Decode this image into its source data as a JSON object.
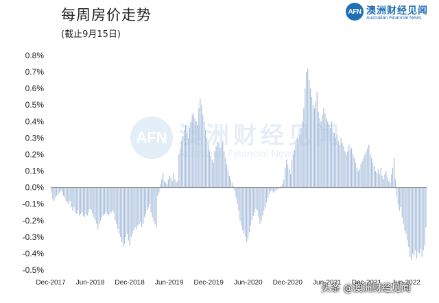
{
  "header": {
    "title": "每周房价走势",
    "subtitle": "(截止9月15日)"
  },
  "brand": {
    "logo_text": "AFN",
    "name_cn": "澳洲财经见闻",
    "name_en": "Australian Financial News",
    "color": "#1f6fb6"
  },
  "watermark": {
    "logo_text": "AFN",
    "name_cn": "澳洲财经见闻",
    "name_en": "Australian Financial News"
  },
  "footer": {
    "credit": "头条 @澳洲财经见闻"
  },
  "chart_data": {
    "type": "bar",
    "title": "每周房价走势",
    "subtitle": "(截止9月15日)",
    "bar_color": "#a9bfdc",
    "ylim": [
      -0.5,
      0.8
    ],
    "y_ticks": [
      0.8,
      0.7,
      0.6,
      0.5,
      0.4,
      0.3,
      0.2,
      0.1,
      0.0,
      -0.1,
      -0.2,
      -0.3,
      -0.4,
      -0.5
    ],
    "y_tick_labels": [
      "0.8%",
      "0.7%",
      "0.6%",
      "0.5%",
      "0.4%",
      "0.3%",
      "0.2%",
      "0.1%",
      "0.0%",
      "-0.1%",
      "-0.2%",
      "-0.3%",
      "-0.4%",
      "-0.5%"
    ],
    "x_tick_labels": [
      "Dec-2017",
      "Jun-2018",
      "Dec-2018",
      "Jun-2019",
      "Dec-2019",
      "Jun-2020",
      "Dec-2020",
      "Jun-2021",
      "Dec-2021",
      "Jun-2022"
    ],
    "grid": false,
    "values": [
      -0.03,
      -0.07,
      -0.08,
      -0.06,
      -0.05,
      -0.04,
      -0.03,
      -0.02,
      -0.03,
      -0.05,
      -0.06,
      -0.08,
      -0.09,
      -0.1,
      -0.08,
      -0.12,
      -0.14,
      -0.12,
      -0.15,
      -0.16,
      -0.14,
      -0.17,
      -0.16,
      -0.15,
      -0.17,
      -0.18,
      -0.16,
      -0.17,
      -0.15,
      -0.13,
      -0.14,
      -0.16,
      -0.18,
      -0.2,
      -0.22,
      -0.25,
      -0.22,
      -0.2,
      -0.18,
      -0.17,
      -0.16,
      -0.15,
      -0.16,
      -0.17,
      -0.16,
      -0.15,
      -0.14,
      -0.15,
      -0.2,
      -0.22,
      -0.25,
      -0.28,
      -0.3,
      -0.33,
      -0.36,
      -0.34,
      -0.3,
      -0.28,
      -0.32,
      -0.35,
      -0.3,
      -0.28,
      -0.26,
      -0.24,
      -0.25,
      -0.23,
      -0.22,
      -0.21,
      -0.24,
      -0.22,
      -0.18,
      -0.16,
      -0.14,
      -0.12,
      -0.1,
      -0.15,
      -0.18,
      -0.2,
      -0.22,
      -0.24,
      -0.05,
      -0.03,
      0.02,
      0.05,
      0.09,
      0.04,
      0.03,
      0.02,
      0.05,
      0.07,
      0.06,
      0.04,
      0.09,
      0.05,
      0.03,
      0.04,
      0.2,
      0.24,
      0.28,
      0.31,
      0.35,
      0.38,
      0.33,
      0.3,
      0.36,
      0.4,
      0.44,
      0.45,
      0.42,
      0.4,
      0.38,
      0.48,
      0.54,
      0.5,
      0.44,
      0.4,
      0.35,
      0.3,
      0.26,
      0.22,
      0.19,
      0.17,
      0.15,
      0.22,
      0.25,
      0.28,
      0.27,
      0.24,
      0.26,
      0.28,
      0.22,
      0.18,
      0.14,
      0.1,
      0.07,
      0.05,
      0.03,
      0.01,
      -0.02,
      -0.06,
      -0.1,
      -0.14,
      -0.2,
      -0.23,
      -0.26,
      -0.28,
      -0.3,
      -0.33,
      -0.31,
      -0.27,
      -0.23,
      -0.2,
      -0.17,
      -0.15,
      -0.13,
      -0.14,
      -0.18,
      -0.22,
      -0.2,
      -0.17,
      -0.14,
      -0.12,
      -0.09,
      -0.06,
      -0.04,
      -0.02,
      -0.02,
      -0.03,
      -0.02,
      -0.02,
      -0.01,
      -0.01,
      0.0,
      0.01,
      0.02,
      0.05,
      0.12,
      0.17,
      0.14,
      0.11,
      0.08,
      0.17,
      0.2,
      0.23,
      0.27,
      0.3,
      0.29,
      0.32,
      0.36,
      0.4,
      0.48,
      0.6,
      0.7,
      0.72,
      0.65,
      0.6,
      0.55,
      0.5,
      0.48,
      0.52,
      0.58,
      0.46,
      0.42,
      0.4,
      0.44,
      0.48,
      0.45,
      0.42,
      0.4,
      0.38,
      0.36,
      0.4,
      0.34,
      0.33,
      0.3,
      0.32,
      0.28,
      0.26,
      0.3,
      0.27,
      0.25,
      0.22,
      0.2,
      0.22,
      0.26,
      0.23,
      0.24,
      0.2,
      0.18,
      0.15,
      0.12,
      0.1,
      0.11,
      0.14,
      0.16,
      0.18,
      0.2,
      0.22,
      0.24,
      0.26,
      0.2,
      0.18,
      0.15,
      0.13,
      0.1,
      0.09,
      0.11,
      0.08,
      0.12,
      0.07,
      0.05,
      0.08,
      0.1,
      0.06,
      0.04,
      0.03,
      0.08,
      0.12,
      0.18,
      0.05,
      -0.05,
      -0.1,
      -0.14,
      -0.12,
      -0.18,
      -0.22,
      -0.26,
      -0.28,
      -0.32,
      -0.36,
      -0.42,
      -0.44,
      -0.4,
      -0.41,
      -0.38,
      -0.43,
      -0.39,
      -0.4,
      -0.37,
      -0.42,
      -0.38,
      -0.35,
      -0.24
    ]
  }
}
